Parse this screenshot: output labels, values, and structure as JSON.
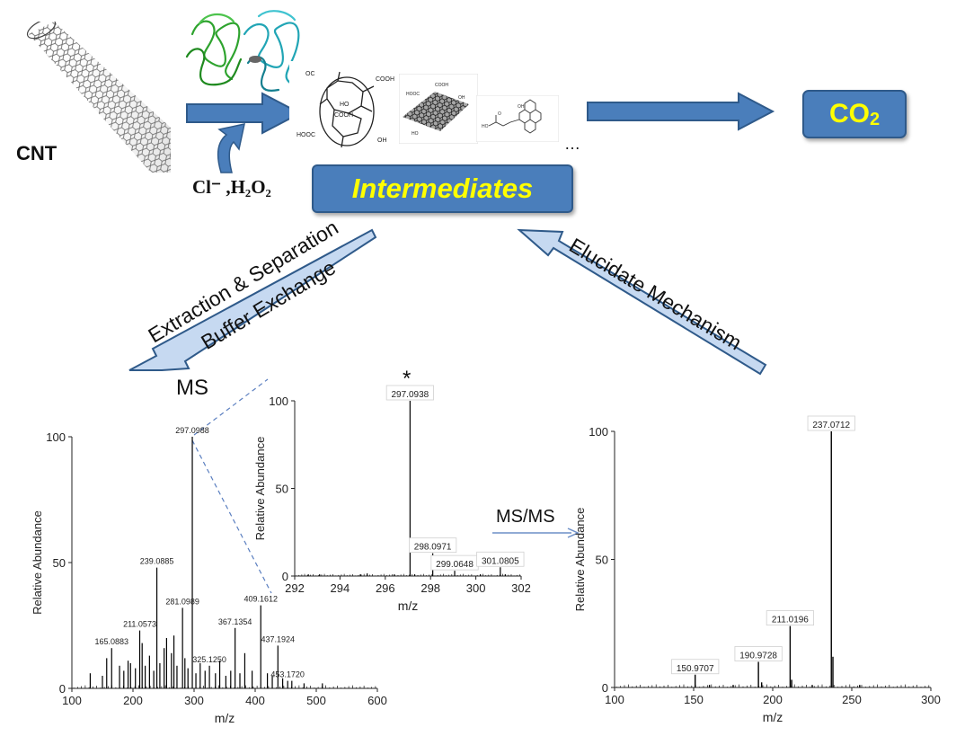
{
  "top": {
    "cnt_label": "CNT",
    "reagents": "Cl⁻ ,H₂O₂",
    "intermediates_label": "Intermediates",
    "co2_main": "CO",
    "co2_sub": "2",
    "ellipsis": "…"
  },
  "arrows": {
    "extraction_line1": "Extraction & Separation",
    "extraction_line2": "Buffer Exchange",
    "elucidate": "Elucidate Mechanism"
  },
  "ms_label": "MS",
  "msms_label": "MS/MS",
  "star": "*",
  "chart_data": [
    {
      "type": "bar",
      "name": "full-ms",
      "xlabel": "m/z",
      "ylabel": "Relative Abundance",
      "xlim": [
        100,
        600
      ],
      "ylim": [
        0,
        100
      ],
      "xticks": [
        100,
        200,
        300,
        400,
        500,
        600
      ],
      "yticks": [
        0,
        50,
        100
      ],
      "peaks": [
        {
          "x": 297.0988,
          "y": 100,
          "label": "297.0988"
        },
        {
          "x": 239.0885,
          "y": 48,
          "label": "239.0885"
        },
        {
          "x": 281.0989,
          "y": 32,
          "label": "281.0989"
        },
        {
          "x": 409.1612,
          "y": 33,
          "label": "409.1612"
        },
        {
          "x": 367.1354,
          "y": 24,
          "label": "367.1354"
        },
        {
          "x": 437.1924,
          "y": 17,
          "label": "437.1924"
        },
        {
          "x": 211.0573,
          "y": 23,
          "label": "211.0573"
        },
        {
          "x": 165.0883,
          "y": 16,
          "label": "165.0883"
        },
        {
          "x": 325.125,
          "y": 9,
          "label": "325.1250"
        },
        {
          "x": 453.172,
          "y": 3,
          "label": "453.1720"
        },
        {
          "x": 130,
          "y": 6
        },
        {
          "x": 150,
          "y": 5
        },
        {
          "x": 157,
          "y": 12
        },
        {
          "x": 178,
          "y": 9
        },
        {
          "x": 185,
          "y": 7
        },
        {
          "x": 192,
          "y": 11
        },
        {
          "x": 196,
          "y": 10
        },
        {
          "x": 204,
          "y": 8
        },
        {
          "x": 215,
          "y": 18
        },
        {
          "x": 220,
          "y": 9
        },
        {
          "x": 227,
          "y": 13
        },
        {
          "x": 234,
          "y": 7
        },
        {
          "x": 244,
          "y": 10
        },
        {
          "x": 251,
          "y": 16
        },
        {
          "x": 255,
          "y": 20
        },
        {
          "x": 263,
          "y": 14
        },
        {
          "x": 267,
          "y": 21
        },
        {
          "x": 272,
          "y": 9
        },
        {
          "x": 285,
          "y": 12
        },
        {
          "x": 290,
          "y": 8
        },
        {
          "x": 303,
          "y": 6
        },
        {
          "x": 310,
          "y": 10
        },
        {
          "x": 318,
          "y": 7
        },
        {
          "x": 335,
          "y": 6
        },
        {
          "x": 342,
          "y": 11
        },
        {
          "x": 352,
          "y": 5
        },
        {
          "x": 360,
          "y": 7
        },
        {
          "x": 375,
          "y": 6
        },
        {
          "x": 383,
          "y": 14
        },
        {
          "x": 395,
          "y": 7
        },
        {
          "x": 420,
          "y": 6
        },
        {
          "x": 428,
          "y": 5
        },
        {
          "x": 445,
          "y": 4
        },
        {
          "x": 460,
          "y": 3
        },
        {
          "x": 480,
          "y": 2
        },
        {
          "x": 510,
          "y": 2
        }
      ]
    },
    {
      "type": "bar",
      "name": "zoom-ms",
      "xlabel": "m/z",
      "ylabel": "Relative Abundance",
      "xlim": [
        292,
        302
      ],
      "ylim": [
        0,
        100
      ],
      "xticks": [
        292,
        294,
        296,
        298,
        300,
        302
      ],
      "yticks": [
        0,
        50,
        100
      ],
      "peaks": [
        {
          "x": 297.0938,
          "y": 100,
          "label": "297.0938"
        },
        {
          "x": 298.0971,
          "y": 13,
          "label": "298.0971"
        },
        {
          "x": 299.0648,
          "y": 3,
          "label": "299.0648"
        },
        {
          "x": 301.0805,
          "y": 5,
          "label": "301.0805"
        },
        {
          "x": 292.6,
          "y": 1
        },
        {
          "x": 293.1,
          "y": 1
        },
        {
          "x": 294.9,
          "y": 1
        },
        {
          "x": 295.2,
          "y": 1.5
        },
        {
          "x": 296.4,
          "y": 1
        },
        {
          "x": 297.3,
          "y": 1
        },
        {
          "x": 300.2,
          "y": 1
        },
        {
          "x": 301.3,
          "y": 1
        }
      ]
    },
    {
      "type": "bar",
      "name": "msms",
      "xlabel": "m/z",
      "ylabel": "Relative Abundance",
      "xlim": [
        100,
        300
      ],
      "ylim": [
        0,
        100
      ],
      "xticks": [
        100,
        150,
        200,
        250,
        300
      ],
      "yticks": [
        0,
        50,
        100
      ],
      "peaks": [
        {
          "x": 237.0712,
          "y": 100,
          "label": "237.0712"
        },
        {
          "x": 211.0196,
          "y": 24,
          "label": "211.0196"
        },
        {
          "x": 190.9728,
          "y": 10,
          "label": "190.9728"
        },
        {
          "x": 150.9707,
          "y": 5,
          "label": "150.9707"
        },
        {
          "x": 238.07,
          "y": 12
        },
        {
          "x": 193,
          "y": 2
        },
        {
          "x": 212,
          "y": 3
        },
        {
          "x": 160,
          "y": 1
        },
        {
          "x": 175,
          "y": 1
        },
        {
          "x": 225,
          "y": 1
        },
        {
          "x": 255,
          "y": 1
        }
      ]
    }
  ]
}
